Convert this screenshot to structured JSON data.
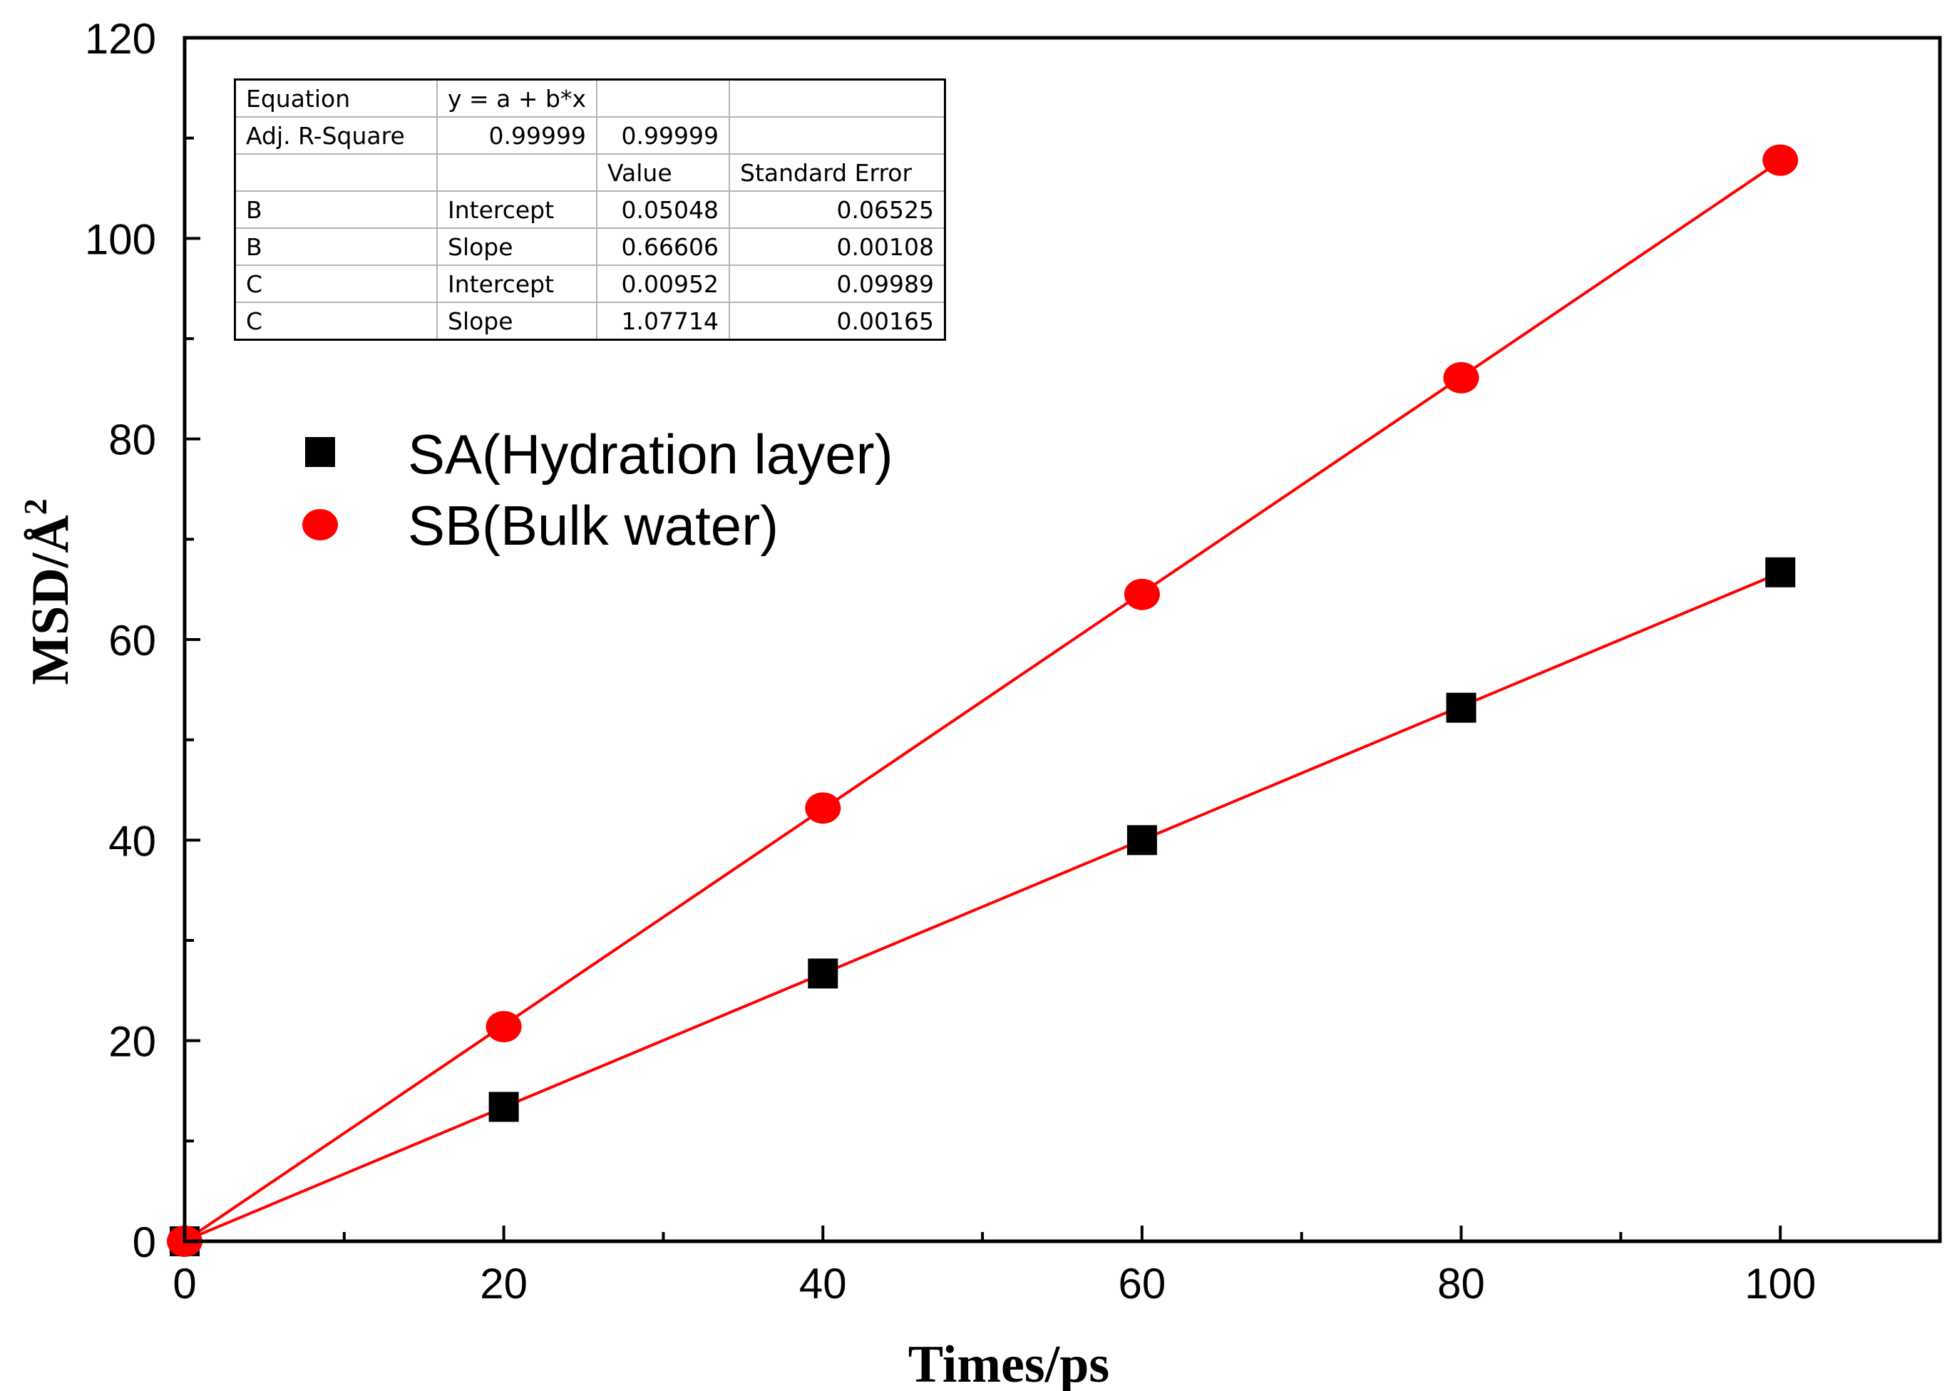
{
  "chart_data": {
    "type": "scatter",
    "title": "",
    "xlabel": "Times/ps",
    "ylabel": "MSD/Å²",
    "ylabel_base": "MSD/Å",
    "ylabel_sup": "2",
    "xlim": [
      0,
      110
    ],
    "ylim": [
      0,
      120
    ],
    "x_ticks": [
      0,
      20,
      40,
      60,
      80,
      100
    ],
    "x_minor_ticks": [
      10,
      30,
      50,
      70,
      90
    ],
    "y_ticks": [
      0,
      20,
      40,
      60,
      80,
      100,
      120
    ],
    "y_minor_ticks": [
      10,
      30,
      50,
      70,
      90,
      110
    ],
    "grid": false,
    "legend_position": "upper-left",
    "series": [
      {
        "name": "SA(Hydration layer)",
        "marker": "square",
        "color": "#000000",
        "x": [
          0,
          20,
          40,
          60,
          80,
          100
        ],
        "y": [
          0.0,
          13.4,
          26.7,
          40.0,
          53.2,
          66.7
        ],
        "fit": {
          "intercept": 0.05048,
          "slope": 0.66606,
          "color": "#ff0000"
        }
      },
      {
        "name": "SB(Bulk water)",
        "marker": "circle",
        "color": "#ff0000",
        "x": [
          0,
          20,
          40,
          60,
          80,
          100
        ],
        "y": [
          0.0,
          21.4,
          43.2,
          64.5,
          86.1,
          107.8
        ],
        "fit": {
          "intercept": 0.00952,
          "slope": 1.07714,
          "color": "#ff0000"
        }
      }
    ],
    "fit_table": {
      "rows": [
        [
          "Equation",
          "y = a + b*x",
          "",
          ""
        ],
        [
          "Adj. R-Square",
          "0.99999",
          "0.99999",
          ""
        ],
        [
          "",
          "",
          "Value",
          "Standard Error"
        ],
        [
          "B",
          "Intercept",
          "0.05048",
          "0.06525"
        ],
        [
          "B",
          "Slope",
          "0.66606",
          "0.00108"
        ],
        [
          "C",
          "Intercept",
          "0.00952",
          "0.09989"
        ],
        [
          "C",
          "Slope",
          "1.07714",
          "0.00165"
        ]
      ]
    }
  }
}
